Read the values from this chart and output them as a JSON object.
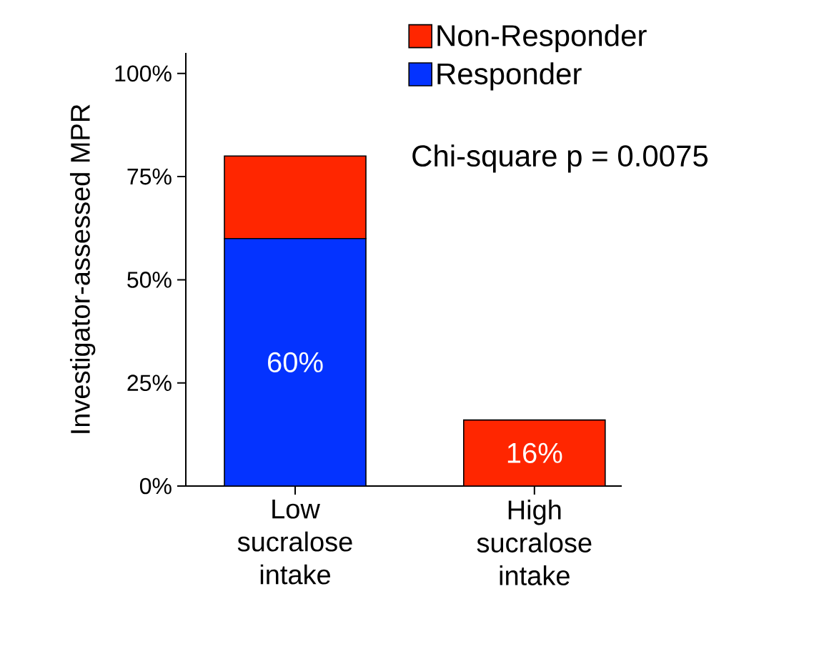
{
  "chart_data": {
    "type": "bar",
    "stacked": true,
    "categories": [
      "Low sucralose intake",
      "High sucralose intake"
    ],
    "series": [
      {
        "name": "Responder",
        "color": "#0433ff",
        "values": [
          60,
          0
        ],
        "value_labels": [
          "60%",
          null
        ]
      },
      {
        "name": "Non-Responder",
        "color": "#ff2600",
        "values": [
          20,
          16
        ],
        "value_labels": [
          null,
          "16%"
        ]
      }
    ],
    "ylabel": "Investigator-assessed MPR",
    "ylim": [
      0,
      105
    ],
    "yticks": [
      {
        "value": 0,
        "label": "0%"
      },
      {
        "value": 25,
        "label": "25%"
      },
      {
        "value": 50,
        "label": "50%"
      },
      {
        "value": 75,
        "label": "75%"
      },
      {
        "value": 100,
        "label": "100%"
      }
    ],
    "legend": "top right",
    "annotations": [
      "Chi-square p = 0.0075"
    ]
  }
}
